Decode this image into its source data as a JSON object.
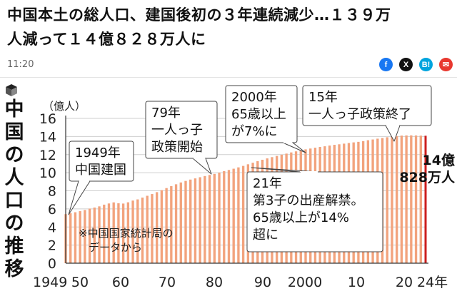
{
  "article": {
    "headline_line1": "中国本土の総人口、建国後初の３年連続減少…１３９万",
    "headline_line2": "人減って１４億８２８万人に",
    "time": "11:20"
  },
  "share": [
    {
      "name": "facebook-share-button",
      "label": "f",
      "color": "#1877f2"
    },
    {
      "name": "x-share-button",
      "label": "X",
      "color": "#111111"
    },
    {
      "name": "hatena-share-button",
      "label": "B!",
      "color": "#00a4de"
    },
    {
      "name": "mail-share-button",
      "label": "✉",
      "color": "#e8382f"
    }
  ],
  "chart_data": {
    "type": "bar",
    "title": "中国の人口の推移",
    "ylabel": "（億人）",
    "ylim": [
      0,
      16
    ],
    "yticks": [
      0,
      2,
      4,
      6,
      8,
      10,
      12,
      14,
      16
    ],
    "xtick_labels": [
      "1949",
      "50",
      "60",
      "70",
      "80",
      "90",
      "2000",
      "10",
      "20",
      "24年"
    ],
    "source_note_line1": "※中国国家統計局の",
    "source_note_line2": "データから",
    "final_value_line1": "14億",
    "final_value_line2": "828万人",
    "bar_color": "#f2a37d",
    "highlight_color": "#cc1e1e",
    "annotations": [
      {
        "lines": [
          "1949年",
          "中国建国"
        ]
      },
      {
        "lines": [
          "79年",
          "一人っ子",
          "政策開始"
        ]
      },
      {
        "lines": [
          "2000年",
          "65歳以上",
          "が7%に"
        ]
      },
      {
        "lines": [
          "15年",
          "一人っ子政策終了"
        ]
      },
      {
        "lines": [
          "21年",
          "第3子の出産解禁。",
          "65歳以上が14%",
          "超に"
        ]
      }
    ],
    "series": [
      {
        "name": "中国の人口（億人）",
        "years": [
          1949,
          1950,
          1951,
          1952,
          1953,
          1954,
          1955,
          1956,
          1957,
          1958,
          1959,
          1960,
          1961,
          1962,
          1963,
          1964,
          1965,
          1966,
          1967,
          1968,
          1969,
          1970,
          1971,
          1972,
          1973,
          1974,
          1975,
          1976,
          1977,
          1978,
          1979,
          1980,
          1981,
          1982,
          1983,
          1984,
          1985,
          1986,
          1987,
          1988,
          1989,
          1990,
          1991,
          1992,
          1993,
          1994,
          1995,
          1996,
          1997,
          1998,
          1999,
          2000,
          2001,
          2002,
          2003,
          2004,
          2005,
          2006,
          2007,
          2008,
          2009,
          2010,
          2011,
          2012,
          2013,
          2014,
          2015,
          2016,
          2017,
          2018,
          2019,
          2020,
          2021,
          2022,
          2023,
          2024
        ],
        "values": [
          5.42,
          5.52,
          5.63,
          5.75,
          5.88,
          6.03,
          6.15,
          6.28,
          6.47,
          6.6,
          6.72,
          6.62,
          6.59,
          6.73,
          6.92,
          7.05,
          7.25,
          7.45,
          7.64,
          7.85,
          8.07,
          8.3,
          8.52,
          8.72,
          8.92,
          9.09,
          9.24,
          9.37,
          9.5,
          9.63,
          9.75,
          9.87,
          10.01,
          10.17,
          10.3,
          10.44,
          10.59,
          10.75,
          10.93,
          11.1,
          11.27,
          11.43,
          11.58,
          11.72,
          11.85,
          11.99,
          12.11,
          12.24,
          12.36,
          12.48,
          12.58,
          12.67,
          12.76,
          12.85,
          12.92,
          13.0,
          13.08,
          13.14,
          13.21,
          13.28,
          13.35,
          13.41,
          13.49,
          13.59,
          13.67,
          13.76,
          13.83,
          13.92,
          14.0,
          14.05,
          14.1,
          14.12,
          14.126,
          14.1175,
          14.0967,
          14.0828
        ]
      }
    ]
  }
}
